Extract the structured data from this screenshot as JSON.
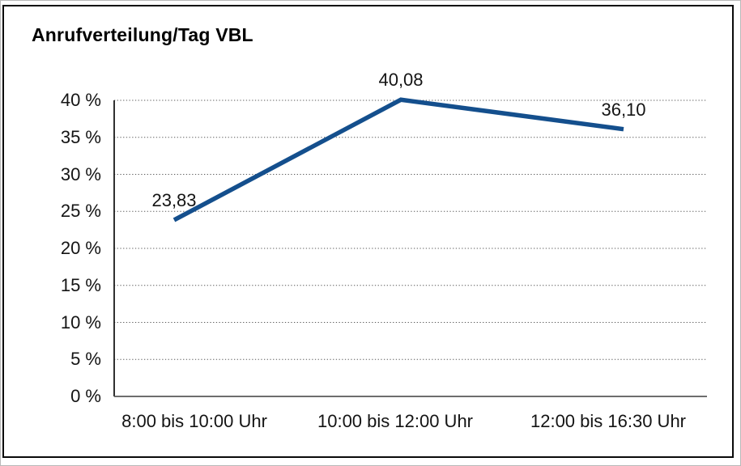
{
  "title": "Anrufverteilung/Tag VBL",
  "chart_data": {
    "type": "line",
    "title": "Anrufverteilung/Tag VBL",
    "categories": [
      "8:00 bis 10:00 Uhr",
      "10:00 bis 12:00 Uhr",
      "12:00 bis 16:30 Uhr"
    ],
    "values": [
      23.83,
      40.08,
      36.1
    ],
    "point_labels": [
      "23,83",
      "40,08",
      "36,10"
    ],
    "y_ticks": [
      "0 %",
      "5 %",
      "10 %",
      "15 %",
      "20 %",
      "25 %",
      "30 %",
      "35 %",
      "40 %"
    ],
    "y_tick_step": 5,
    "ylim": [
      0,
      40
    ],
    "xlabel": "",
    "ylabel": "",
    "grid": "horizontal-dotted",
    "legend": "none",
    "line_color": "#144f8d",
    "grid_color": "#595959",
    "y_axis_color": "#1a1a1a",
    "x_axis_color": "#595959",
    "text_color": "#141414"
  }
}
